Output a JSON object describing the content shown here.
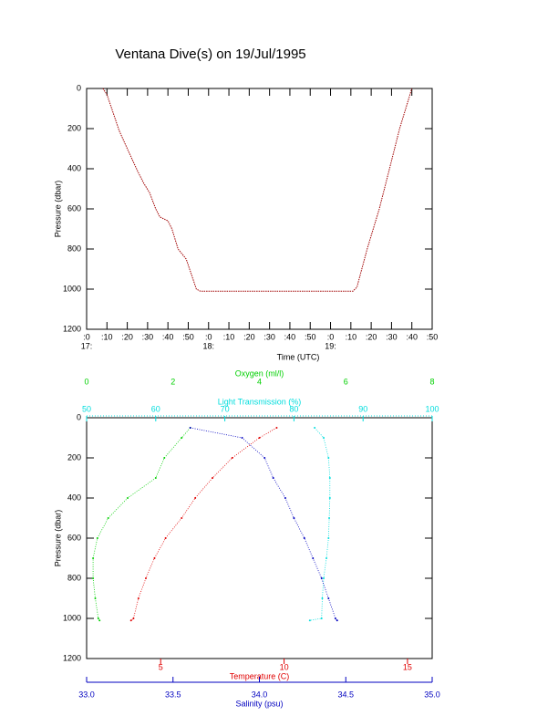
{
  "chart_data": [
    {
      "type": "line",
      "title": "Ventana Dive(s) on 19/Jul/1995",
      "x_label": "Time (UTC)",
      "y_label": "Pressure (dbar)",
      "color": "#a00000",
      "xlim": [
        "17:00",
        "19:50"
      ],
      "xticks": [
        {
          "value": "17:00",
          "label": ":0"
        },
        {
          "value": "17:10",
          "label": ":10"
        },
        {
          "value": "17:20",
          "label": ":20"
        },
        {
          "value": "17:30",
          "label": ":30"
        },
        {
          "value": "17:40",
          "label": ":40"
        },
        {
          "value": "17:50",
          "label": ":50"
        },
        {
          "value": "18:00",
          "label": ":0"
        },
        {
          "value": "18:10",
          "label": ":10"
        },
        {
          "value": "18:20",
          "label": ":20"
        },
        {
          "value": "18:30",
          "label": ":30"
        },
        {
          "value": "18:40",
          "label": ":40"
        },
        {
          "value": "18:50",
          "label": ":50"
        },
        {
          "value": "19:00",
          "label": ":0"
        },
        {
          "value": "19:10",
          "label": ":10"
        },
        {
          "value": "19:20",
          "label": ":20"
        },
        {
          "value": "19:30",
          "label": ":30"
        },
        {
          "value": "19:40",
          "label": ":40"
        },
        {
          "value": "19:50",
          "label": ":50"
        }
      ],
      "hour_labels": [
        {
          "value": "17:00",
          "label": "17:"
        },
        {
          "value": "18:00",
          "label": "18:"
        },
        {
          "value": "19:00",
          "label": "19:"
        }
      ],
      "ylim": [
        1200,
        0
      ],
      "yticks": [
        0,
        200,
        400,
        600,
        800,
        1000,
        1200
      ],
      "x": [
        "17:08",
        "17:10",
        "17:13",
        "17:16",
        "17:20",
        "17:25",
        "17:28",
        "17:31",
        "17:34",
        "17:36",
        "17:40",
        "17:42",
        "17:45",
        "17:49",
        "17:54",
        "17:56",
        "19:11",
        "19:13",
        "19:18",
        "19:24",
        "19:29",
        "19:34",
        "19:40"
      ],
      "values": [
        0,
        30,
        120,
        210,
        300,
        410,
        470,
        520,
        600,
        640,
        660,
        700,
        800,
        850,
        1000,
        1010,
        1010,
        990,
        800,
        600,
        400,
        200,
        0
      ]
    },
    {
      "type": "profile",
      "y_label": "Pressure (dbar)",
      "ylim": [
        1200,
        0
      ],
      "yticks": [
        0,
        200,
        400,
        600,
        800,
        1000,
        1200
      ],
      "profiles": [
        {
          "label": "Oxygen (ml/l)",
          "color": "#00d000",
          "xlim": [
            0,
            8
          ],
          "xticks": [
            0,
            2,
            4,
            6,
            8
          ],
          "pressure": [
            50,
            100,
            200,
            300,
            400,
            500,
            600,
            700,
            800,
            900,
            1000,
            1010
          ],
          "values": [
            2.4,
            2.2,
            1.8,
            1.6,
            0.95,
            0.5,
            0.25,
            0.15,
            0.15,
            0.2,
            0.27,
            0.3
          ]
        },
        {
          "label": "Light Transmission (%)",
          "color": "#00dddd",
          "xlim": [
            50,
            100
          ],
          "xticks": [
            50,
            60,
            70,
            80,
            90,
            100
          ],
          "pressure": [
            50,
            100,
            200,
            300,
            400,
            500,
            600,
            700,
            800,
            900,
            1000,
            1010
          ],
          "values": [
            83,
            84.3,
            85,
            85.2,
            85.2,
            85.1,
            85,
            84.7,
            84.3,
            84.1,
            84,
            82.3
          ]
        },
        {
          "label": "Temperature (C)",
          "color": "#e00000",
          "xlim": [
            2,
            16
          ],
          "xticks": [
            5,
            10,
            15
          ],
          "pressure": [
            50,
            100,
            200,
            300,
            400,
            500,
            600,
            700,
            800,
            900,
            1000,
            1010
          ],
          "values": [
            9.7,
            9.0,
            7.9,
            7.1,
            6.4,
            5.85,
            5.2,
            4.75,
            4.4,
            4.1,
            3.9,
            3.8
          ]
        },
        {
          "label": "Salinity (psu)",
          "color": "#0000c0",
          "xlim": [
            33,
            35
          ],
          "xticks": [
            {
              "value": 33,
              "label": "33.0"
            },
            33.5,
            {
              "value": 34,
              "label": "34.0"
            },
            34.5,
            {
              "value": 35,
              "label": "35.0"
            }
          ],
          "pressure": [
            50,
            100,
            200,
            300,
            400,
            500,
            600,
            700,
            800,
            900,
            1000,
            1010
          ],
          "values": [
            33.6,
            33.9,
            34.03,
            34.08,
            34.15,
            34.2,
            34.26,
            34.31,
            34.36,
            34.4,
            34.44,
            34.45
          ]
        }
      ]
    }
  ]
}
